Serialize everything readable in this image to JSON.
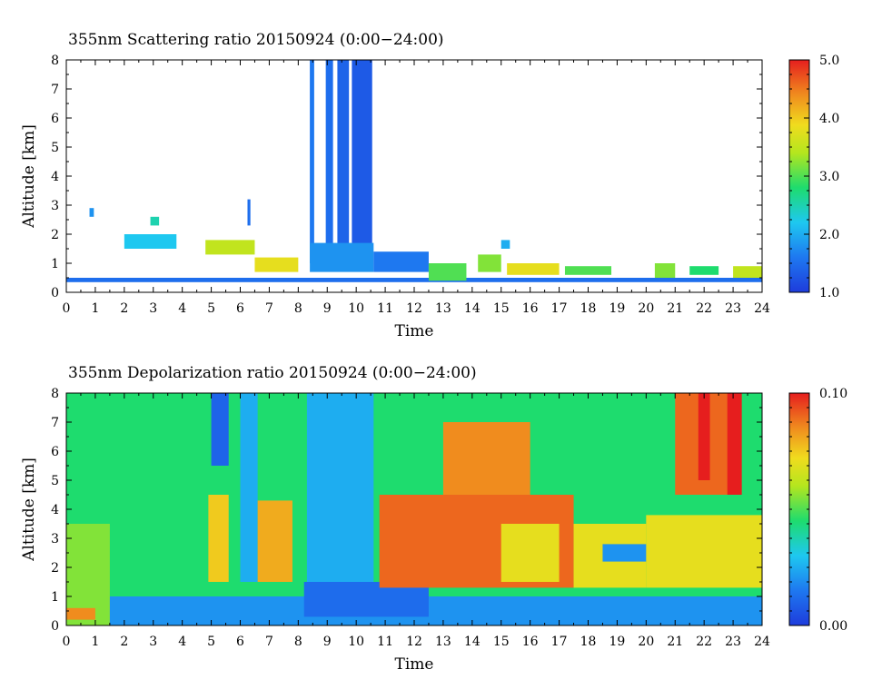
{
  "chart_data": [
    {
      "type": "heatmap",
      "title": "355nm Scattering ratio  20150924 (0:00−24:00)",
      "xlabel": "Time",
      "ylabel": "Altitude [km]",
      "xlim": [
        0,
        24
      ],
      "ylim": [
        0,
        8
      ],
      "x_ticks": [
        "0",
        "1",
        "2",
        "3",
        "4",
        "5",
        "6",
        "7",
        "8",
        "9",
        "10",
        "11",
        "12",
        "13",
        "14",
        "15",
        "16",
        "17",
        "18",
        "19",
        "20",
        "21",
        "22",
        "23",
        "24"
      ],
      "y_ticks": [
        "0",
        "1",
        "2",
        "3",
        "4",
        "5",
        "6",
        "7",
        "8"
      ],
      "colorbar": {
        "min": 1.0,
        "max": 5.0,
        "tick_labels": [
          "1.0",
          "2.0",
          "3.0",
          "4.0",
          "5.0"
        ],
        "tick_values": [
          1.0,
          2.0,
          3.0,
          4.0,
          5.0
        ]
      },
      "features": [
        {
          "kind": "rect",
          "x0": 0.0,
          "x1": 24.0,
          "y0": 0.35,
          "y1": 0.5,
          "value": 1.5
        },
        {
          "kind": "rect",
          "x0": 8.4,
          "x1": 8.55,
          "y0": 1.0,
          "y1": 8.0,
          "value": 1.6
        },
        {
          "kind": "rect",
          "x0": 8.95,
          "x1": 9.2,
          "y0": 1.0,
          "y1": 8.0,
          "value": 1.5
        },
        {
          "kind": "rect",
          "x0": 9.35,
          "x1": 9.75,
          "y0": 1.0,
          "y1": 8.0,
          "value": 1.4
        },
        {
          "kind": "rect",
          "x0": 9.85,
          "x1": 10.55,
          "y0": 1.0,
          "y1": 8.0,
          "value": 1.3
        },
        {
          "kind": "rect",
          "x0": 8.4,
          "x1": 10.6,
          "y0": 0.7,
          "y1": 1.7,
          "value": 1.8
        },
        {
          "kind": "rect",
          "x0": 10.6,
          "x1": 12.5,
          "y0": 0.7,
          "y1": 1.4,
          "value": 1.6
        },
        {
          "kind": "rect",
          "x0": 12.5,
          "x1": 13.8,
          "y0": 0.4,
          "y1": 1.0,
          "value": 3.0
        },
        {
          "kind": "rect",
          "x0": 4.8,
          "x1": 6.5,
          "y0": 1.3,
          "y1": 1.8,
          "value": 3.5
        },
        {
          "kind": "rect",
          "x0": 6.5,
          "x1": 8.0,
          "y0": 0.7,
          "y1": 1.2,
          "value": 3.8
        },
        {
          "kind": "rect",
          "x0": 2.0,
          "x1": 3.8,
          "y0": 1.5,
          "y1": 2.0,
          "value": 2.2
        },
        {
          "kind": "rect",
          "x0": 2.9,
          "x1": 3.2,
          "y0": 2.3,
          "y1": 2.6,
          "value": 2.5
        },
        {
          "kind": "rect",
          "x0": 0.8,
          "x1": 0.95,
          "y0": 2.6,
          "y1": 2.9,
          "value": 1.8
        },
        {
          "kind": "rect",
          "x0": 6.25,
          "x1": 6.35,
          "y0": 2.3,
          "y1": 3.2,
          "value": 1.5
        },
        {
          "kind": "rect",
          "x0": 14.2,
          "x1": 15.0,
          "y0": 0.7,
          "y1": 1.3,
          "value": 3.2
        },
        {
          "kind": "rect",
          "x0": 15.2,
          "x1": 17.0,
          "y0": 0.6,
          "y1": 1.0,
          "value": 3.8
        },
        {
          "kind": "rect",
          "x0": 15.0,
          "x1": 15.3,
          "y0": 1.5,
          "y1": 1.8,
          "value": 2.0
        },
        {
          "kind": "rect",
          "x0": 17.2,
          "x1": 18.8,
          "y0": 0.6,
          "y1": 0.9,
          "value": 3.0
        },
        {
          "kind": "rect",
          "x0": 20.3,
          "x1": 21.0,
          "y0": 0.5,
          "y1": 1.0,
          "value": 3.2
        },
        {
          "kind": "rect",
          "x0": 21.5,
          "x1": 22.5,
          "y0": 0.6,
          "y1": 0.9,
          "value": 2.8
        },
        {
          "kind": "rect",
          "x0": 23.0,
          "x1": 24.0,
          "y0": 0.5,
          "y1": 0.9,
          "value": 3.5
        }
      ]
    },
    {
      "type": "heatmap",
      "title": "355nm Depolarization ratio  20150924 (0:00−24:00)",
      "xlabel": "Time",
      "ylabel": "Altitude [km]",
      "xlim": [
        0,
        24
      ],
      "ylim": [
        0,
        8
      ],
      "x_ticks": [
        "0",
        "1",
        "2",
        "3",
        "4",
        "5",
        "6",
        "7",
        "8",
        "9",
        "10",
        "11",
        "12",
        "13",
        "14",
        "15",
        "16",
        "17",
        "18",
        "19",
        "20",
        "21",
        "22",
        "23",
        "24"
      ],
      "y_ticks": [
        "0",
        "1",
        "2",
        "3",
        "4",
        "5",
        "6",
        "7",
        "8"
      ],
      "colorbar": {
        "min": 0.0,
        "max": 0.1,
        "tick_labels": [
          "0.00",
          "0.10"
        ],
        "tick_values": [
          0.0,
          0.1
        ]
      },
      "background_value": 0.045,
      "features": [
        {
          "kind": "rect",
          "x0": 0.0,
          "x1": 24.0,
          "y0": 0.0,
          "y1": 1.0,
          "value": 0.02
        },
        {
          "kind": "rect",
          "x0": 0.0,
          "x1": 1.5,
          "y0": 0.0,
          "y1": 3.5,
          "value": 0.055
        },
        {
          "kind": "rect",
          "x0": 0.0,
          "x1": 1.0,
          "y0": 0.2,
          "y1": 0.6,
          "value": 0.085
        },
        {
          "kind": "rect",
          "x0": 5.0,
          "x1": 5.6,
          "y0": 5.5,
          "y1": 8.0,
          "value": 0.01
        },
        {
          "kind": "rect",
          "x0": 4.9,
          "x1": 5.6,
          "y0": 1.5,
          "y1": 4.5,
          "value": 0.075
        },
        {
          "kind": "rect",
          "x0": 6.0,
          "x1": 6.6,
          "y0": 1.5,
          "y1": 8.0,
          "value": 0.025
        },
        {
          "kind": "rect",
          "x0": 6.6,
          "x1": 7.8,
          "y0": 1.5,
          "y1": 4.3,
          "value": 0.08
        },
        {
          "kind": "rect",
          "x0": 8.3,
          "x1": 10.6,
          "y0": 0.8,
          "y1": 8.0,
          "value": 0.025
        },
        {
          "kind": "rect",
          "x0": 8.2,
          "x1": 12.5,
          "y0": 0.3,
          "y1": 1.5,
          "value": 0.012
        },
        {
          "kind": "rect",
          "x0": 10.8,
          "x1": 17.5,
          "y0": 1.3,
          "y1": 4.5,
          "value": 0.09
        },
        {
          "kind": "rect",
          "x0": 13.0,
          "x1": 16.0,
          "y0": 4.5,
          "y1": 7.0,
          "value": 0.085
        },
        {
          "kind": "rect",
          "x0": 15.0,
          "x1": 17.0,
          "y0": 1.5,
          "y1": 3.5,
          "value": 0.07
        },
        {
          "kind": "rect",
          "x0": 17.5,
          "x1": 20.0,
          "y0": 1.3,
          "y1": 3.5,
          "value": 0.07
        },
        {
          "kind": "rect",
          "x0": 18.5,
          "x1": 21.0,
          "y0": 2.2,
          "y1": 2.8,
          "value": 0.02
        },
        {
          "kind": "rect",
          "x0": 20.0,
          "x1": 24.0,
          "y0": 1.3,
          "y1": 3.8,
          "value": 0.07
        },
        {
          "kind": "rect",
          "x0": 21.0,
          "x1": 23.0,
          "y0": 4.5,
          "y1": 8.0,
          "value": 0.09
        },
        {
          "kind": "rect",
          "x0": 21.8,
          "x1": 22.2,
          "y0": 5.0,
          "y1": 8.0,
          "value": 0.1
        },
        {
          "kind": "rect",
          "x0": 22.8,
          "x1": 23.3,
          "y0": 4.5,
          "y1": 8.0,
          "value": 0.1
        }
      ]
    }
  ]
}
